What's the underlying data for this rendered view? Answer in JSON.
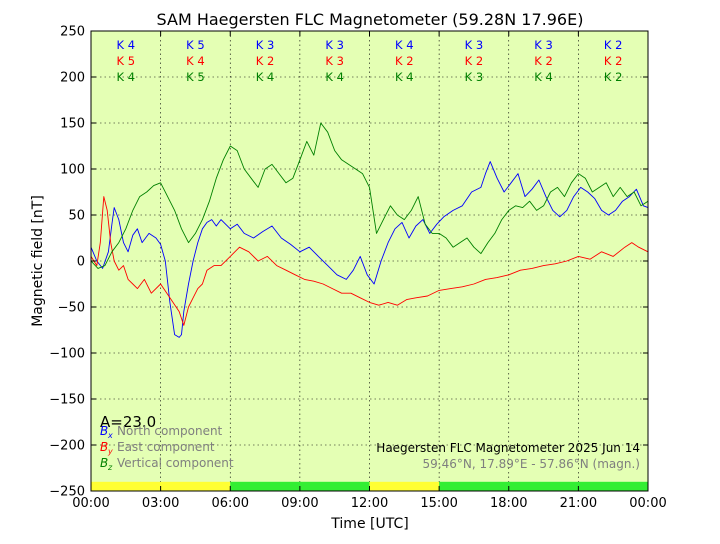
{
  "chart_data": {
    "type": "line",
    "title": "SAM Haegersten FLC Magnetometer (59.28N 17.96E)",
    "xlabel": "Time [UTC]",
    "ylabel": "Magnetic field [nT]",
    "xlim": [
      0,
      24
    ],
    "ylim": [
      -250,
      250
    ],
    "grid": true,
    "x_ticks": [
      0,
      3,
      6,
      9,
      12,
      15,
      18,
      21,
      24
    ],
    "x_tick_labels": [
      "00:00",
      "03:00",
      "06:00",
      "09:00",
      "12:00",
      "15:00",
      "18:00",
      "21:00",
      "00:00"
    ],
    "y_ticks": [
      -250,
      -200,
      -150,
      -100,
      -50,
      0,
      50,
      100,
      150,
      200,
      250
    ],
    "y_tick_labels": [
      "−250",
      "−200",
      "−150",
      "−100",
      "−50",
      "0",
      "50",
      "100",
      "150",
      "200",
      "250"
    ],
    "a_index": "A=23.0",
    "station_caption": "Haegersten FLC Magnetometer 2025 Jun 14",
    "coordinates_caption": "59.46°N, 17.89°E - 57.86°N (magn.)",
    "k_rows": [
      {
        "component": "North",
        "color": "#0000ff",
        "values": [
          "K 4",
          "K 5",
          "K 3",
          "K 3",
          "K 4",
          "K 3",
          "K 3",
          "K 2"
        ]
      },
      {
        "component": "East",
        "color": "#ff0000",
        "values": [
          "K 5",
          "K 4",
          "K 2",
          "K 3",
          "K 2",
          "K 2",
          "K 2",
          "K 2"
        ]
      },
      {
        "component": "Vertical",
        "color": "#008000",
        "values": [
          "K 4",
          "K 5",
          "K 4",
          "K 4",
          "K 4",
          "K 3",
          "K 4",
          "K 2"
        ]
      }
    ],
    "k_interval_centers": [
      1.5,
      4.5,
      7.5,
      10.5,
      13.5,
      16.5,
      19.5,
      22.5
    ],
    "activity_bar": [
      {
        "from": 0,
        "to": 6,
        "level": "yellow",
        "color": "#ffff33"
      },
      {
        "from": 6,
        "to": 12,
        "level": "green",
        "color": "#33ee33"
      },
      {
        "from": 12,
        "to": 15,
        "level": "yellow",
        "color": "#ffff33"
      },
      {
        "from": 15,
        "to": 24,
        "level": "green",
        "color": "#33ee33"
      }
    ],
    "background_color": "#e4ffb4",
    "series": [
      {
        "name": "North component",
        "symbol": "B",
        "subscript": "x",
        "color": "#0000ff",
        "x": [
          0,
          0.25,
          0.5,
          0.75,
          0.9,
          1.0,
          1.2,
          1.4,
          1.6,
          1.8,
          2.0,
          2.2,
          2.5,
          2.8,
          3.0,
          3.2,
          3.4,
          3.6,
          3.8,
          3.9,
          4.0,
          4.2,
          4.4,
          4.6,
          4.8,
          5.0,
          5.2,
          5.4,
          5.6,
          5.8,
          6.0,
          6.3,
          6.6,
          7.0,
          7.4,
          7.8,
          8.2,
          8.6,
          9.0,
          9.4,
          9.8,
          10.2,
          10.6,
          11.0,
          11.3,
          11.6,
          11.9,
          12.2,
          12.5,
          12.8,
          13.1,
          13.4,
          13.7,
          14.0,
          14.3,
          14.6,
          14.9,
          15.2,
          15.6,
          16.0,
          16.4,
          16.8,
          17.0,
          17.2,
          17.5,
          17.8,
          18.1,
          18.4,
          18.7,
          19.0,
          19.3,
          19.6,
          19.9,
          20.2,
          20.5,
          20.8,
          21.1,
          21.4,
          21.7,
          22.0,
          22.3,
          22.6,
          22.9,
          23.2,
          23.5,
          23.8,
          24
        ],
        "values": [
          15,
          0,
          -8,
          10,
          40,
          58,
          45,
          20,
          10,
          28,
          35,
          20,
          30,
          25,
          18,
          0,
          -45,
          -80,
          -83,
          -80,
          -55,
          -25,
          0,
          20,
          35,
          42,
          45,
          38,
          45,
          40,
          35,
          40,
          30,
          25,
          32,
          38,
          25,
          18,
          10,
          15,
          5,
          -5,
          -15,
          -20,
          -10,
          5,
          -15,
          -25,
          0,
          20,
          35,
          42,
          25,
          38,
          45,
          30,
          40,
          48,
          55,
          60,
          75,
          80,
          95,
          108,
          90,
          75,
          85,
          95,
          70,
          78,
          88,
          70,
          55,
          48,
          55,
          70,
          80,
          75,
          68,
          55,
          50,
          55,
          65,
          70,
          78,
          60,
          58
        ]
      },
      {
        "name": "East component",
        "symbol": "B",
        "subscript": "y",
        "color": "#ff0000",
        "x": [
          0,
          0.25,
          0.4,
          0.55,
          0.7,
          0.85,
          1.0,
          1.2,
          1.4,
          1.6,
          1.8,
          2.0,
          2.3,
          2.6,
          3.0,
          3.4,
          3.8,
          4.0,
          4.2,
          4.4,
          4.6,
          4.8,
          5.0,
          5.3,
          5.6,
          6.0,
          6.4,
          6.8,
          7.2,
          7.6,
          8.0,
          8.4,
          8.8,
          9.2,
          9.6,
          10.0,
          10.4,
          10.8,
          11.2,
          11.6,
          12.0,
          12.4,
          12.8,
          13.2,
          13.6,
          14.0,
          14.5,
          15.0,
          15.5,
          16.0,
          16.5,
          17.0,
          17.5,
          18.0,
          18.5,
          19.0,
          19.5,
          20.0,
          20.5,
          21.0,
          21.5,
          22.0,
          22.5,
          23.0,
          23.3,
          23.6,
          24
        ],
        "values": [
          5,
          -5,
          20,
          70,
          55,
          20,
          0,
          -10,
          -5,
          -20,
          -25,
          -30,
          -20,
          -35,
          -25,
          -40,
          -55,
          -70,
          -50,
          -40,
          -30,
          -25,
          -10,
          -5,
          -5,
          5,
          15,
          10,
          0,
          5,
          -5,
          -10,
          -15,
          -20,
          -22,
          -25,
          -30,
          -35,
          -35,
          -40,
          -45,
          -48,
          -45,
          -48,
          -42,
          -40,
          -38,
          -32,
          -30,
          -28,
          -25,
          -20,
          -18,
          -15,
          -10,
          -8,
          -5,
          -3,
          0,
          5,
          2,
          10,
          5,
          15,
          20,
          15,
          10
        ]
      },
      {
        "name": "Vertical component",
        "symbol": "B",
        "subscript": "z",
        "color": "#008000",
        "x": [
          0,
          0.3,
          0.6,
          0.9,
          1.2,
          1.5,
          1.8,
          2.1,
          2.4,
          2.7,
          3.0,
          3.3,
          3.6,
          3.9,
          4.2,
          4.5,
          4.8,
          5.1,
          5.4,
          5.7,
          6.0,
          6.3,
          6.6,
          6.9,
          7.2,
          7.5,
          7.8,
          8.1,
          8.4,
          8.7,
          9.0,
          9.3,
          9.6,
          9.9,
          10.2,
          10.5,
          10.8,
          11.1,
          11.4,
          11.7,
          12.0,
          12.3,
          12.6,
          12.9,
          13.2,
          13.5,
          13.8,
          14.1,
          14.4,
          14.7,
          15.0,
          15.3,
          15.6,
          15.9,
          16.2,
          16.5,
          16.8,
          17.1,
          17.4,
          17.7,
          18.0,
          18.3,
          18.6,
          18.9,
          19.2,
          19.5,
          19.8,
          20.1,
          20.4,
          20.7,
          21.0,
          21.3,
          21.6,
          21.9,
          22.2,
          22.5,
          22.8,
          23.1,
          23.4,
          23.7,
          24
        ],
        "values": [
          0,
          -8,
          -5,
          10,
          20,
          35,
          55,
          70,
          75,
          82,
          85,
          70,
          55,
          35,
          20,
          30,
          45,
          65,
          90,
          110,
          125,
          120,
          100,
          90,
          80,
          100,
          105,
          95,
          85,
          90,
          110,
          130,
          115,
          150,
          140,
          120,
          110,
          105,
          100,
          95,
          80,
          30,
          45,
          60,
          50,
          45,
          55,
          70,
          40,
          30,
          30,
          25,
          15,
          20,
          25,
          15,
          8,
          20,
          30,
          45,
          55,
          60,
          58,
          65,
          55,
          60,
          75,
          80,
          70,
          85,
          95,
          90,
          75,
          80,
          85,
          70,
          80,
          70,
          75,
          60,
          65
        ]
      }
    ]
  }
}
